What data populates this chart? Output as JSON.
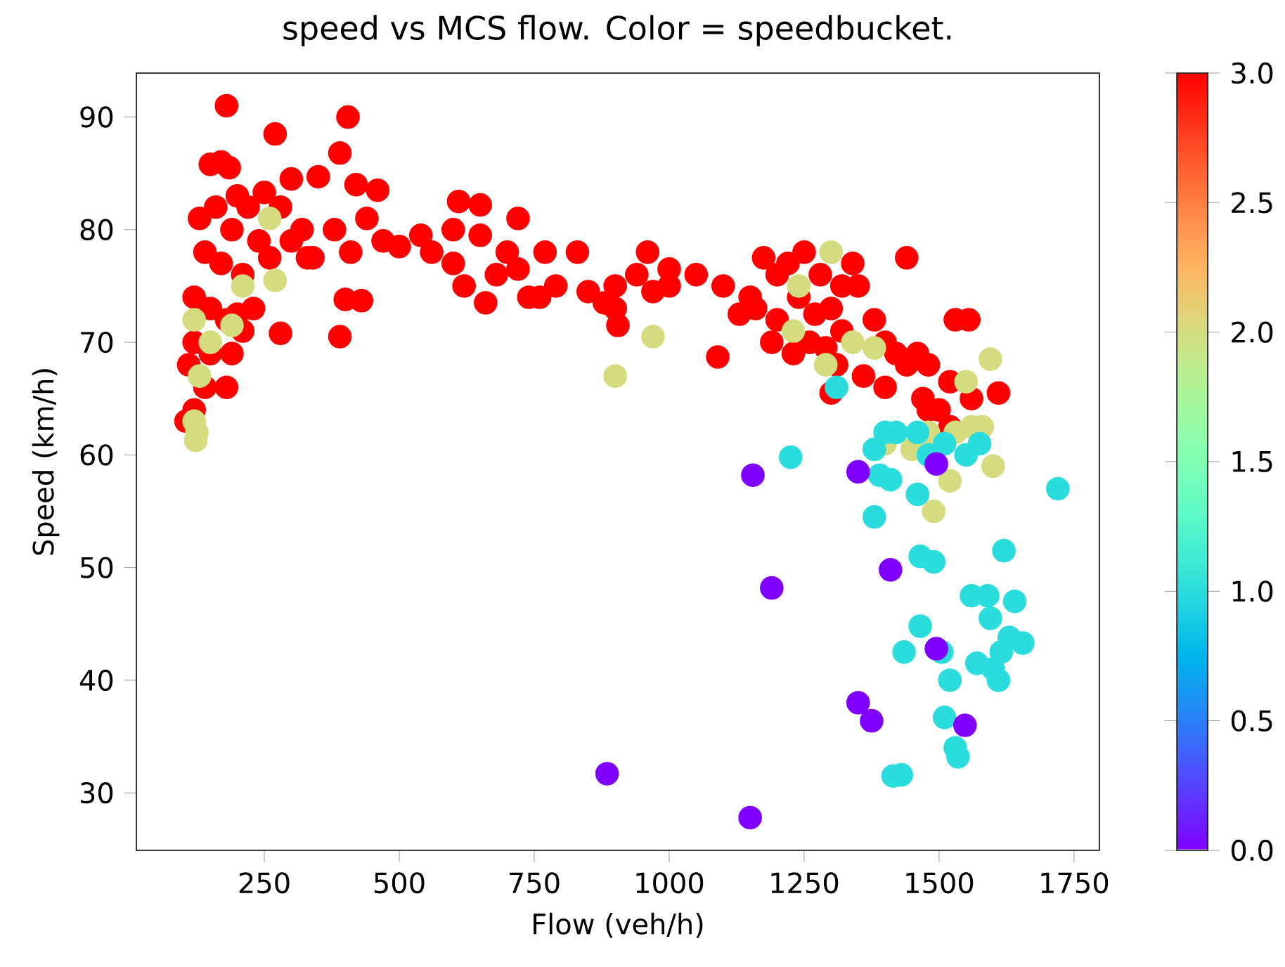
{
  "chart_data": {
    "type": "scatter",
    "title": "speed vs MCS flow. Color = speedbucket.",
    "xlabel": "Flow (veh/h)",
    "ylabel": "Speed (km/h)",
    "xlim": [
      13,
      1797
    ],
    "ylim": [
      24.9,
      93.9
    ],
    "xticks": [
      250,
      500,
      750,
      1000,
      1250,
      1500,
      1750
    ],
    "yticks": [
      30,
      40,
      50,
      60,
      70,
      80,
      90
    ],
    "clim": [
      0,
      3
    ],
    "cticks": [
      {
        "value": 0,
        "label": "0.0"
      },
      {
        "value": 0.5,
        "label": "0.5"
      },
      {
        "value": 1,
        "label": "1.0"
      },
      {
        "value": 1.5,
        "label": "1.5"
      },
      {
        "value": 2,
        "label": "2.0"
      },
      {
        "value": 2.5,
        "label": "2.5"
      },
      {
        "value": 3,
        "label": "3.0"
      }
    ],
    "marker": "circle",
    "x": [
      180,
      270,
      405,
      170,
      150,
      185,
      390,
      200,
      300,
      350,
      420,
      460,
      130,
      160,
      190,
      220,
      250,
      280,
      320,
      140,
      170,
      210,
      240,
      260,
      300,
      340,
      380,
      410,
      440,
      470,
      500,
      120,
      150,
      180,
      230,
      120,
      150,
      190,
      210,
      280,
      390,
      110,
      140,
      180,
      120,
      105,
      200,
      400,
      430,
      330,
      120,
      125,
      123,
      130,
      210,
      260,
      270,
      190,
      120,
      150,
      540,
      600,
      650,
      700,
      610,
      650,
      720,
      770,
      830,
      560,
      600,
      620,
      680,
      720,
      740,
      790,
      850,
      900,
      940,
      970,
      1000,
      1050,
      1100,
      1150,
      1200,
      1250,
      660,
      760,
      880,
      905,
      960,
      1090,
      900,
      1000,
      1175,
      1220,
      1280,
      1340,
      1440,
      1160,
      1200,
      1240,
      1260,
      1300,
      1320,
      1350,
      1380,
      1400,
      1420,
      1440,
      1460,
      1480,
      1190,
      1230,
      1270,
      1310,
      1360,
      1400,
      1470,
      1480,
      1500,
      1520,
      1530,
      1555,
      1560,
      1610,
      1520,
      1130,
      1300,
      1320,
      1290,
      1300,
      1240,
      1230,
      1340,
      1380,
      1400,
      1480,
      1550,
      1560,
      1580,
      1595,
      1600,
      1520,
      1490,
      1450,
      1530,
      1290,
      970,
      900,
      1310,
      1225,
      1380,
      1420,
      1390,
      1410,
      1400,
      1460,
      1480,
      1510,
      1550,
      1575,
      1460,
      1380,
      1720,
      1465,
      1490,
      1560,
      1590,
      1620,
      1640,
      1595,
      1465,
      1505,
      1570,
      1600,
      1615,
      1630,
      1655,
      1610,
      1435,
      1510,
      1520,
      1530,
      1535,
      1415,
      1430,
      1155,
      1350,
      1495,
      1190,
      1410,
      1495,
      1350,
      1375,
      1548,
      885,
      1150
    ],
    "values": [
      91,
      88.5,
      90,
      86,
      85.8,
      85.5,
      86.8,
      83,
      84.5,
      84.7,
      84,
      83.5,
      81,
      82,
      80,
      82,
      83.3,
      82,
      80,
      78,
      77,
      76,
      79,
      77.5,
      79,
      77.5,
      80,
      78,
      81,
      79,
      78.5,
      74,
      73,
      72,
      73,
      70,
      69,
      69,
      71,
      70.8,
      70.5,
      68,
      66,
      66,
      64,
      63,
      72.5,
      73.8,
      73.7,
      77.5,
      63,
      62,
      61.3,
      67,
      75,
      81,
      75.5,
      71.5,
      72,
      70,
      79.5,
      80,
      79.5,
      78,
      82.5,
      82.2,
      81,
      78,
      78,
      78,
      77,
      75,
      76,
      76.5,
      74,
      75,
      74.5,
      75,
      76,
      74.5,
      75,
      76,
      75,
      74,
      76,
      78,
      73.5,
      74,
      73.5,
      71.5,
      78,
      68.7,
      73,
      76.5,
      77.5,
      77,
      76,
      77,
      77.5,
      73,
      72,
      74,
      70,
      73,
      71,
      75,
      72,
      70,
      69,
      68,
      69,
      68,
      70,
      69,
      72.5,
      68,
      67,
      66,
      65,
      64,
      64,
      62.5,
      72,
      72,
      65,
      65.5,
      66.5,
      72.5,
      65.5,
      75,
      69.5,
      78,
      75,
      71,
      70,
      69.5,
      61,
      62,
      66.5,
      62.5,
      62.5,
      68.5,
      59,
      57.7,
      55,
      60.5,
      62,
      68,
      70.5,
      67,
      66,
      59.8,
      60.5,
      62,
      58.2,
      57.8,
      62,
      62,
      60,
      61,
      60,
      61,
      56.5,
      54.5,
      57,
      51,
      50.5,
      47.5,
      47.5,
      51.5,
      47,
      45.5,
      44.8,
      42.5,
      41.5,
      41,
      42.5,
      43.8,
      43.3,
      40,
      42.5,
      36.7,
      40,
      34,
      33.2,
      31.5,
      31.6,
      58.2,
      58.5,
      59.2,
      48.2,
      49.8,
      42.8,
      38,
      36.4,
      36,
      31.7,
      27.8
    ],
    "cvalues": [
      3,
      3,
      3,
      3,
      3,
      3,
      3,
      3,
      3,
      3,
      3,
      3,
      3,
      3,
      3,
      3,
      3,
      3,
      3,
      3,
      3,
      3,
      3,
      3,
      3,
      3,
      3,
      3,
      3,
      3,
      3,
      3,
      3,
      3,
      3,
      3,
      3,
      3,
      3,
      3,
      3,
      3,
      3,
      3,
      3,
      3,
      3,
      3,
      3,
      3,
      2,
      2,
      2,
      2,
      2,
      2,
      2,
      2,
      2,
      2,
      3,
      3,
      3,
      3,
      3,
      3,
      3,
      3,
      3,
      3,
      3,
      3,
      3,
      3,
      3,
      3,
      3,
      3,
      3,
      3,
      3,
      3,
      3,
      3,
      3,
      3,
      3,
      3,
      3,
      3,
      3,
      3,
      3,
      3,
      3,
      3,
      3,
      3,
      3,
      3,
      3,
      3,
      3,
      3,
      3,
      3,
      3,
      3,
      3,
      3,
      3,
      3,
      3,
      3,
      3,
      3,
      3,
      3,
      3,
      3,
      3,
      3,
      3,
      3,
      3,
      3,
      3,
      3,
      3,
      3,
      3,
      2,
      2,
      2,
      2,
      2,
      2,
      2,
      2,
      2,
      2,
      2,
      2,
      2,
      2,
      2,
      2,
      2,
      2,
      2,
      1,
      1,
      1,
      1,
      1,
      1,
      1,
      1,
      1,
      1,
      1,
      1,
      1,
      1,
      1,
      1,
      1,
      1,
      1,
      1,
      1,
      1,
      1,
      1,
      1,
      1,
      1,
      1,
      1,
      1,
      1,
      1,
      1,
      1,
      1,
      1,
      1,
      0,
      0,
      0,
      0,
      0,
      0,
      0,
      0,
      0,
      0,
      0
    ]
  }
}
